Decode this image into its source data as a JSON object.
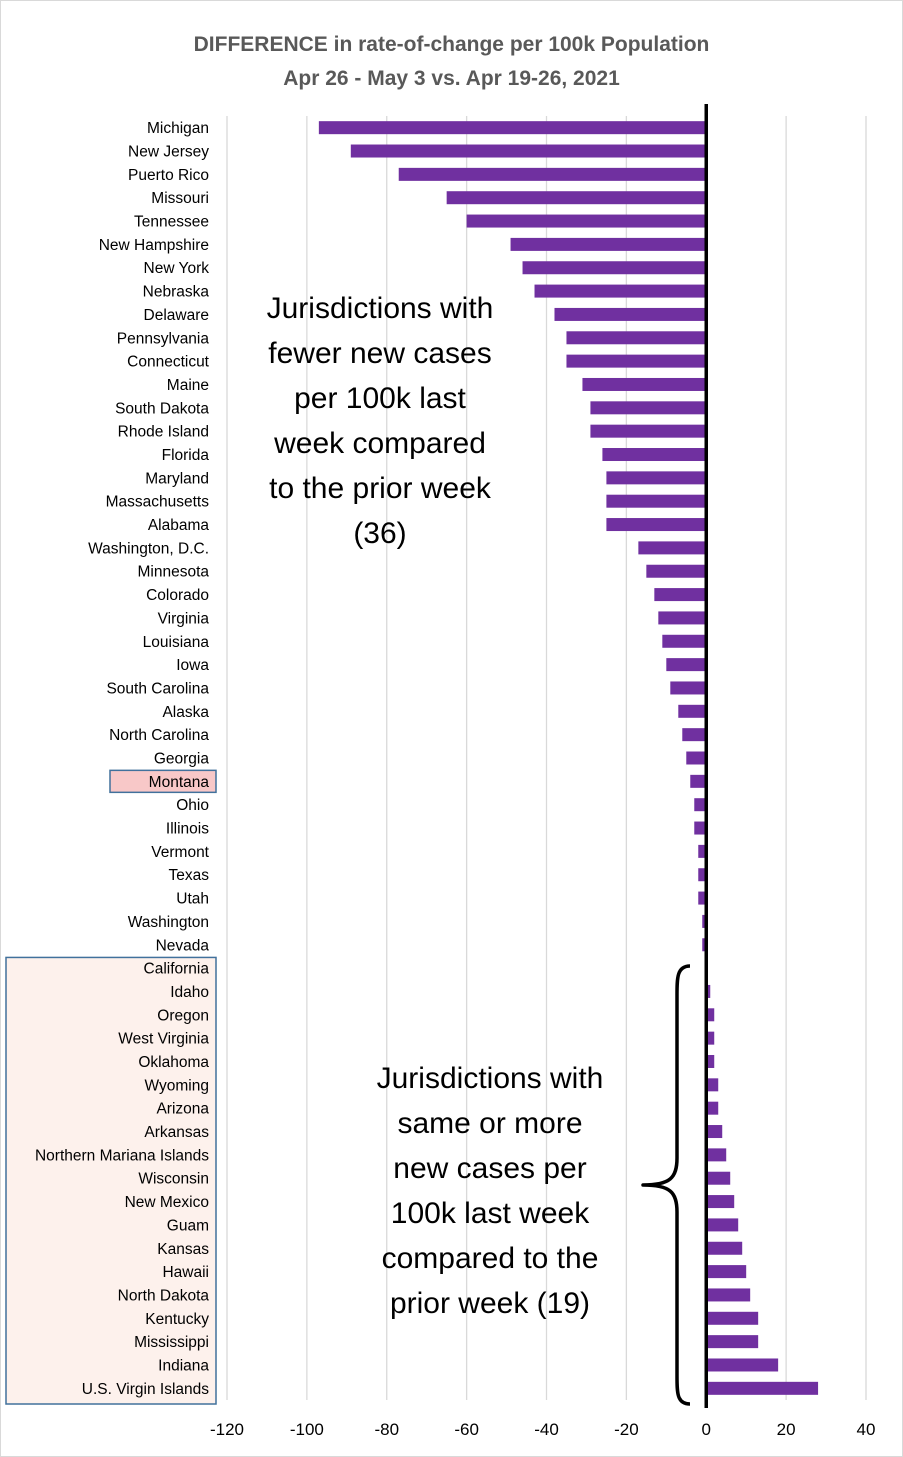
{
  "chart_data": {
    "type": "bar",
    "orientation": "horizontal",
    "title": "DIFFERENCE in rate-of-change per 100k Population",
    "subtitle": "Apr 26 - May 3 vs. Apr 19-26, 2021",
    "xlabel": "",
    "ylabel": "",
    "xlim": [
      -120,
      40
    ],
    "xticks": [
      -120,
      -100,
      -80,
      -60,
      -40,
      -20,
      0,
      20,
      40
    ],
    "grid": "vertical",
    "colors": {
      "bar": "#7030a0",
      "highlight_fill": "#f8c8c8",
      "group_fill": "#fdf1ec",
      "box_border": "#41719c",
      "gridline": "#d9d9d9",
      "zero_line": "#000000"
    },
    "highlighted": [
      "Montana"
    ],
    "categories": [
      "Michigan",
      "New Jersey",
      "Puerto Rico",
      "Missouri",
      "Tennessee",
      "New Hampshire",
      "New York",
      "Nebraska",
      "Delaware",
      "Pennsylvania",
      "Connecticut",
      "Maine",
      "South Dakota",
      "Rhode Island",
      "Florida",
      "Maryland",
      "Massachusetts",
      "Alabama",
      "Washington, D.C.",
      "Minnesota",
      "Colorado",
      "Virginia",
      "Louisiana",
      "Iowa",
      "South Carolina",
      "Alaska",
      "North Carolina",
      "Georgia",
      "Montana",
      "Ohio",
      "Illinois",
      "Vermont",
      "Texas",
      "Utah",
      "Washington",
      "Nevada",
      "California",
      "Idaho",
      "Oregon",
      "West Virginia",
      "Oklahoma",
      "Wyoming",
      "Arizona",
      "Arkansas",
      "Northern Mariana Islands",
      "Wisconsin",
      "New Mexico",
      "Guam",
      "Kansas",
      "Hawaii",
      "North Dakota",
      "Kentucky",
      "Mississippi",
      "Indiana",
      "U.S. Virgin Islands"
    ],
    "values": [
      -97,
      -89,
      -77,
      -65,
      -60,
      -49,
      -46,
      -43,
      -38,
      -35,
      -35,
      -31,
      -29,
      -29,
      -26,
      -25,
      -25,
      -25,
      -17,
      -15,
      -13,
      -12,
      -11,
      -10,
      -9,
      -7,
      -6,
      -5,
      -4,
      -3,
      -3,
      -2,
      -2,
      -2,
      -1,
      -1,
      0,
      1,
      2,
      2,
      2,
      3,
      3,
      4,
      5,
      6,
      7,
      8,
      9,
      10,
      11,
      13,
      13,
      18,
      28
    ],
    "annotations": [
      {
        "text": "Jurisdictions with fewer new cases per 100k last week compared to the prior week (36)",
        "lines": [
          "Jurisdictions with",
          "fewer new cases",
          "per 100k last",
          "week compared",
          "to the prior week",
          "(36)"
        ]
      },
      {
        "text": "Jurisdictions with same or more new cases per 100k last week compared to the prior week (19)",
        "lines": [
          "Jurisdictions with",
          "same or more",
          "new cases per",
          "100k last week",
          "compared to the",
          "prior week (19)"
        ]
      }
    ]
  }
}
